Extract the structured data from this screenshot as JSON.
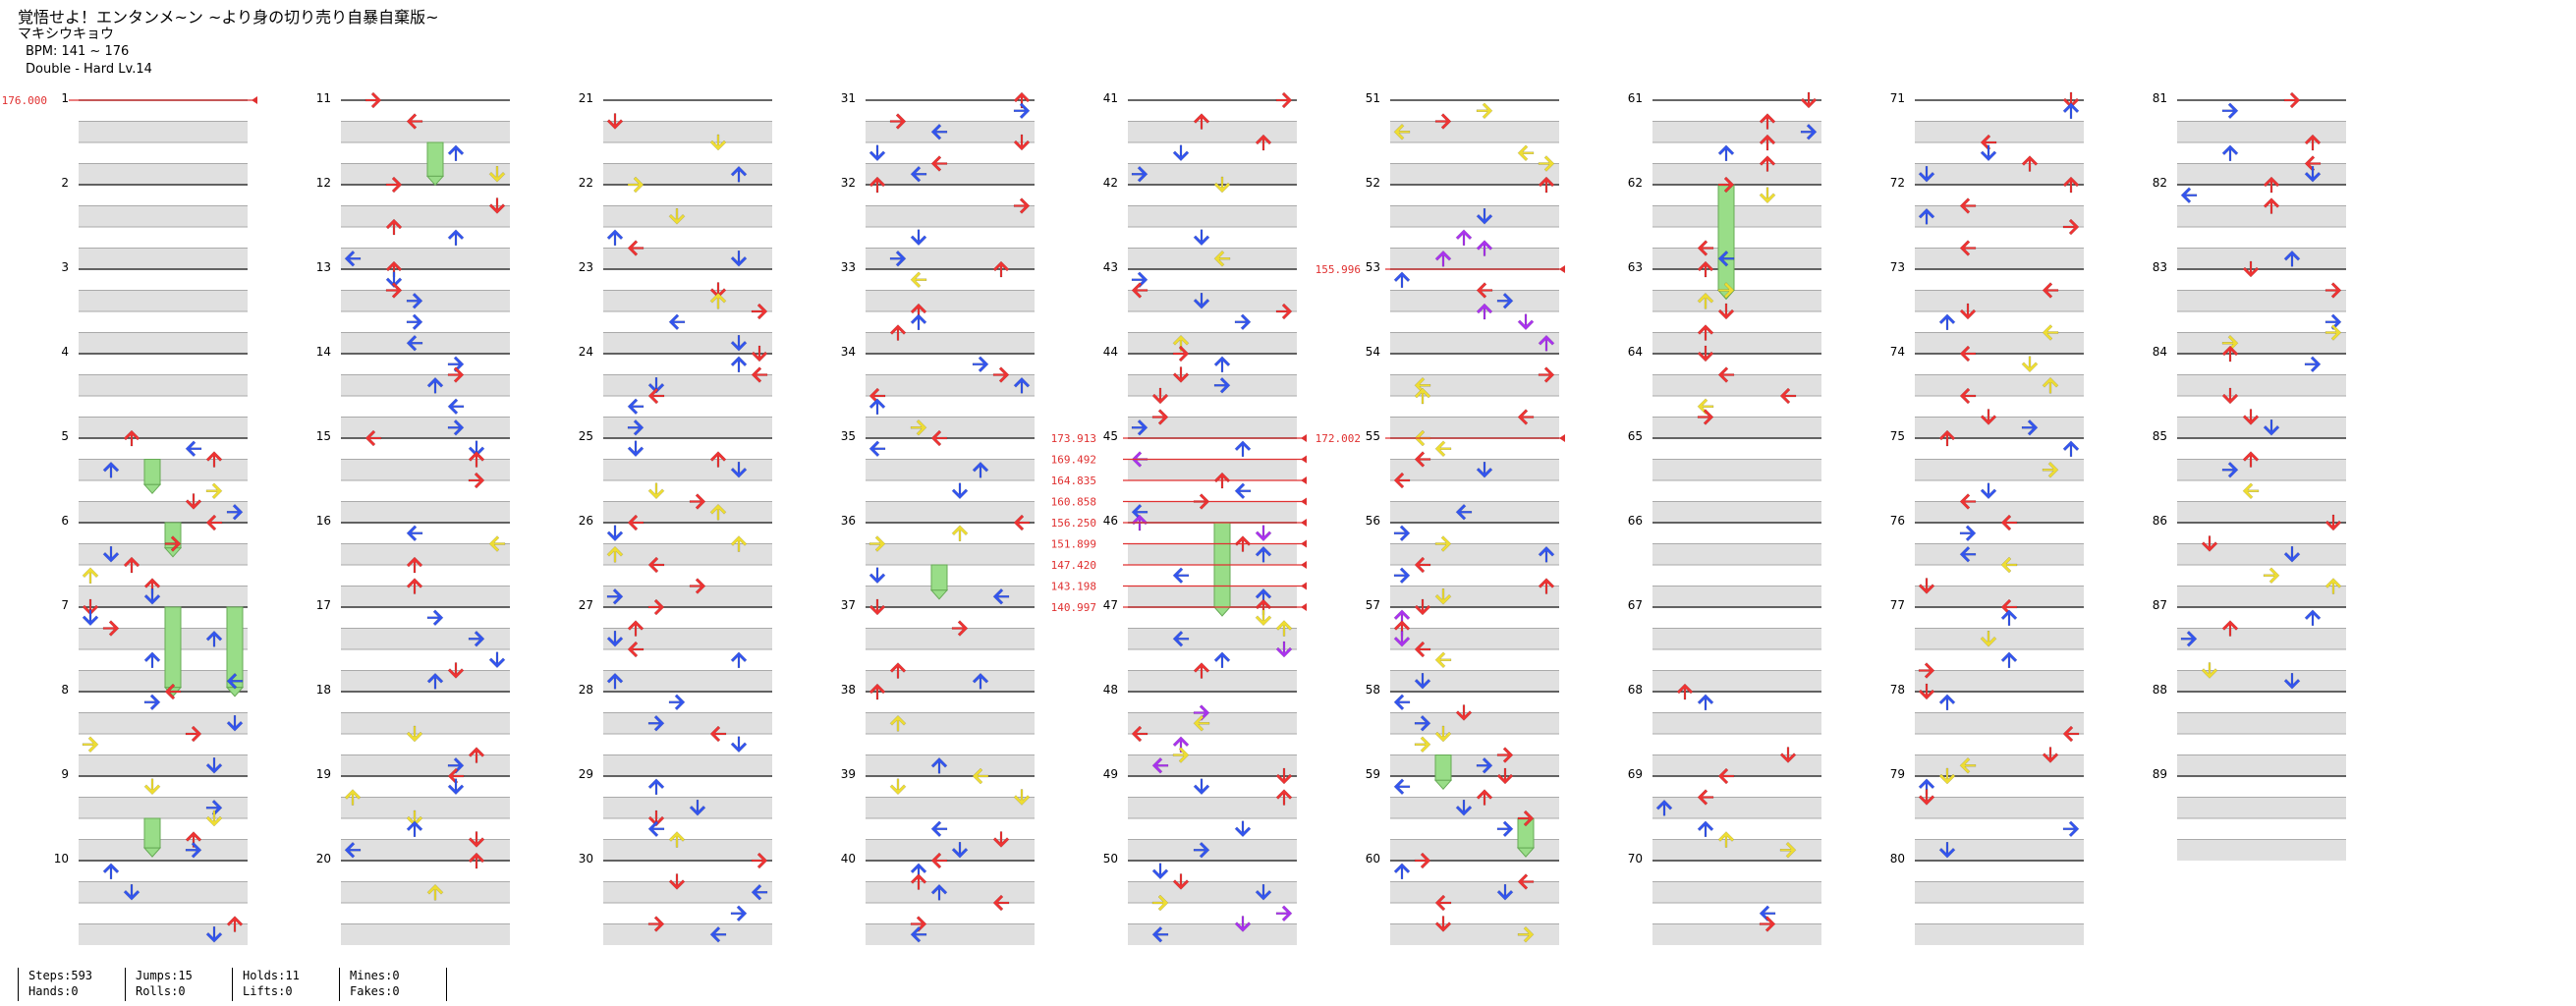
{
  "header": {
    "title": "覚悟せよ！エンタンメ~ン ~より身の切り売り自暴自棄版~",
    "artist": "マキシウキョウ",
    "bpm": "BPM: 141 ~ 176",
    "difficulty": "Double - Hard Lv.14"
  },
  "chart_data": {
    "type": "step-chart",
    "measures_per_column": 10,
    "columns": 9,
    "measure_numbers": [
      1,
      2,
      3,
      4,
      5,
      6,
      7,
      8,
      9,
      10,
      11,
      12,
      13,
      14,
      15,
      16,
      17,
      18,
      19,
      20,
      21,
      22,
      23,
      24,
      25,
      26,
      27,
      28,
      29,
      30,
      31,
      32,
      33,
      34,
      35,
      36,
      37,
      38,
      39,
      40,
      41,
      42,
      43,
      44,
      45,
      46,
      47,
      48,
      49,
      50,
      51,
      52,
      53,
      54,
      55,
      56,
      57,
      58,
      59,
      60,
      61,
      62,
      63,
      64,
      65,
      66,
      67,
      68,
      69,
      70,
      71,
      72,
      73,
      74,
      75,
      76,
      77,
      78,
      79,
      80,
      81,
      82,
      83,
      84,
      85,
      86,
      87,
      88,
      89
    ],
    "last_measure": 89,
    "bpm_changes": [
      {
        "label": "176.000",
        "measure": 1.0,
        "side": "left"
      },
      {
        "label": "155.996",
        "measure": 53.0,
        "side": "right"
      },
      {
        "label": "172.002",
        "measure": 55.0,
        "side": "right"
      },
      {
        "label": "173.913",
        "measure": 45.0,
        "side": "left"
      },
      {
        "label": "169.492",
        "measure": 45.25,
        "side": "left"
      },
      {
        "label": "164.835",
        "measure": 45.5,
        "side": "left"
      },
      {
        "label": "160.858",
        "measure": 45.75,
        "side": "left"
      },
      {
        "label": "156.250",
        "measure": 46.0,
        "side": "left"
      },
      {
        "label": "151.899",
        "measure": 46.25,
        "side": "left"
      },
      {
        "label": "147.420",
        "measure": 46.5,
        "side": "left"
      },
      {
        "label": "143.198",
        "measure": 46.75,
        "side": "left"
      },
      {
        "label": "140.997",
        "measure": 47.0,
        "side": "left"
      }
    ],
    "note_colors": {
      "4th": "#ee3333",
      "8th": "#3355ee",
      "12th": "#aa33ee",
      "16th": "#eedd33",
      "hold": "#99dd88"
    },
    "holds": [
      {
        "measure": 5.25,
        "len": 0.3,
        "lane": 3
      },
      {
        "measure": 6.0,
        "len": 0.3,
        "lane": 4
      },
      {
        "measure": 7.0,
        "len": 0.95,
        "lane": 4
      },
      {
        "measure": 7.0,
        "len": 0.95,
        "lane": 7
      },
      {
        "measure": 9.5,
        "len": 0.35,
        "lane": 3
      },
      {
        "measure": 11.5,
        "len": 0.4,
        "lane": 4
      },
      {
        "measure": 36.5,
        "len": 0.3,
        "lane": 3
      },
      {
        "measure": 46.0,
        "len": 1.0,
        "lane": 4
      },
      {
        "measure": 58.75,
        "len": 0.3,
        "lane": 2
      },
      {
        "measure": 59.5,
        "len": 0.35,
        "lane": 6
      },
      {
        "measure": 62.0,
        "len": 1.25,
        "lane": 3
      }
    ]
  },
  "stats": {
    "steps": "Steps:593",
    "hands": "Hands:0",
    "jumps": "Jumps:15",
    "rolls": "Rolls:0",
    "holds": "Holds:11",
    "lifts": "Lifts:0",
    "mines": "Mines:0",
    "fakes": "Fakes:0"
  }
}
